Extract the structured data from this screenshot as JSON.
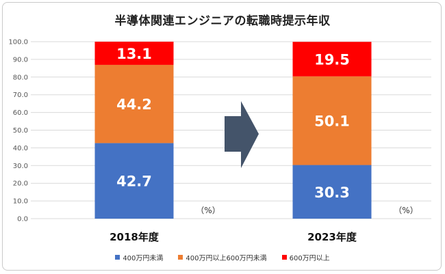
{
  "chart_data": {
    "type": "bar",
    "stacked": true,
    "title": "半導体関連エンジニアの転職時提示年収",
    "categories": [
      "2018年度",
      "2023年度"
    ],
    "series": [
      {
        "name": "400万円未満",
        "values": [
          42.7,
          30.3
        ],
        "color": "#4472C4"
      },
      {
        "name": "400万円以上600万円未満",
        "values": [
          44.2,
          50.1
        ],
        "color": "#ED7D31"
      },
      {
        "name": "600万円以上",
        "values": [
          13.1,
          19.5
        ],
        "color": "#FF0000"
      }
    ],
    "ylim": [
      0,
      100
    ],
    "yticks": [
      "0.0",
      "10.0",
      "20.0",
      "30.0",
      "40.0",
      "50.0",
      "60.0",
      "70.0",
      "80.0",
      "90.0",
      "100.0"
    ],
    "unit": "（%）",
    "grid": true,
    "legend": "bottom",
    "arrow_color": "#44546A"
  }
}
